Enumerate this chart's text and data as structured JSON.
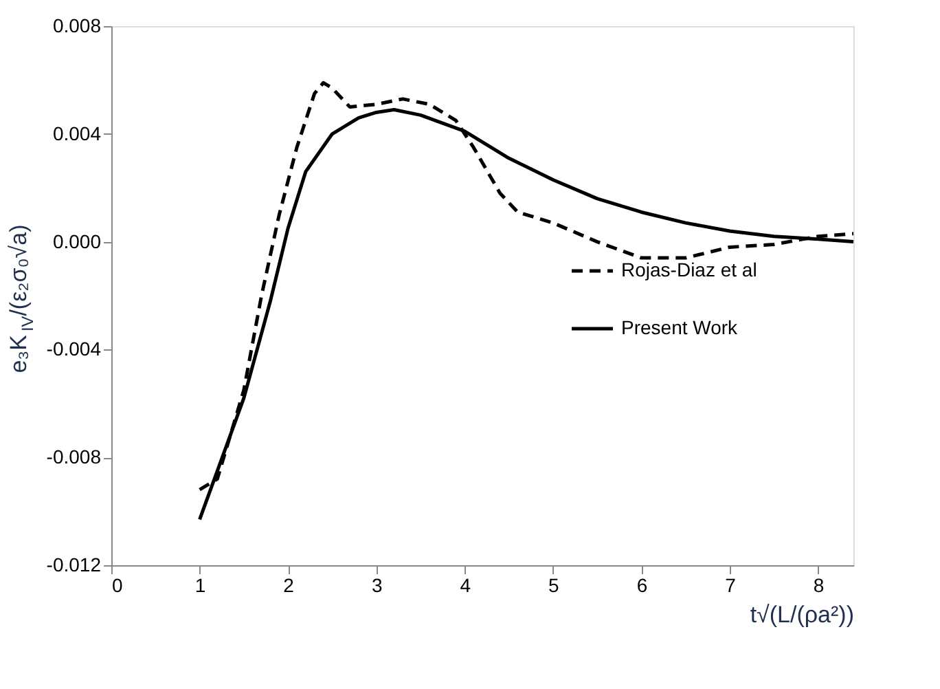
{
  "chart_data": {
    "type": "line",
    "xlabel": "t√(L/(ρa²))",
    "ylabel": "e₃K$_{IV}$/(ε₂σ₀√a)",
    "xlim": [
      0,
      8.4
    ],
    "xticks": [
      0,
      1,
      2,
      3,
      4,
      5,
      6,
      7,
      8
    ],
    "ylim": [
      -0.012,
      0.008
    ],
    "yticks": [
      {
        "value": -0.012,
        "label": "-0.012"
      },
      {
        "value": -0.008,
        "label": "-0.008"
      },
      {
        "value": -0.004,
        "label": "-0.004"
      },
      {
        "value": 0,
        "label": "0.000"
      },
      {
        "value": 0.004,
        "label": "0.004"
      },
      {
        "value": 0.008,
        "label": "0.008"
      }
    ],
    "grid": false,
    "legend": "right",
    "marker": "none",
    "series": [
      {
        "name": "Rojas-Diaz et al",
        "color": "#000000",
        "line_style": "dashed",
        "x": [
          1,
          1.2,
          1.5,
          1.7,
          1.9,
          2.1,
          2.3,
          2.4,
          2.5,
          2.7,
          3.0,
          3.3,
          3.6,
          3.9,
          4.1,
          4.4,
          4.6,
          5.0,
          5.5,
          6.0,
          6.5,
          7.0,
          7.5,
          8.0,
          8.4
        ],
        "values": [
          -0.0092,
          -0.0088,
          -0.0055,
          -0.002,
          0.001,
          0.0035,
          0.0055,
          0.0059,
          0.0057,
          0.005,
          0.0051,
          0.0053,
          0.0051,
          0.0045,
          0.0035,
          0.0018,
          0.0011,
          0.0007,
          0.0,
          -0.0006,
          -0.0006,
          -0.0002,
          -0.0001,
          0.0002,
          0.0003
        ]
      },
      {
        "name": "Present Work",
        "color": "#000000",
        "line_style": "solid",
        "x": [
          1,
          1.2,
          1.5,
          1.8,
          2.0,
          2.2,
          2.5,
          2.8,
          3.0,
          3.2,
          3.5,
          4.0,
          4.5,
          5.0,
          5.5,
          6.0,
          6.5,
          7.0,
          7.5,
          8.0,
          8.4
        ],
        "values": [
          -0.0103,
          -0.0085,
          -0.0058,
          -0.0022,
          0.0005,
          0.0026,
          0.004,
          0.0046,
          0.0048,
          0.0049,
          0.0047,
          0.0041,
          0.0031,
          0.0023,
          0.0016,
          0.0011,
          0.0007,
          0.0004,
          0.0002,
          0.0001,
          0.0
        ]
      }
    ]
  }
}
